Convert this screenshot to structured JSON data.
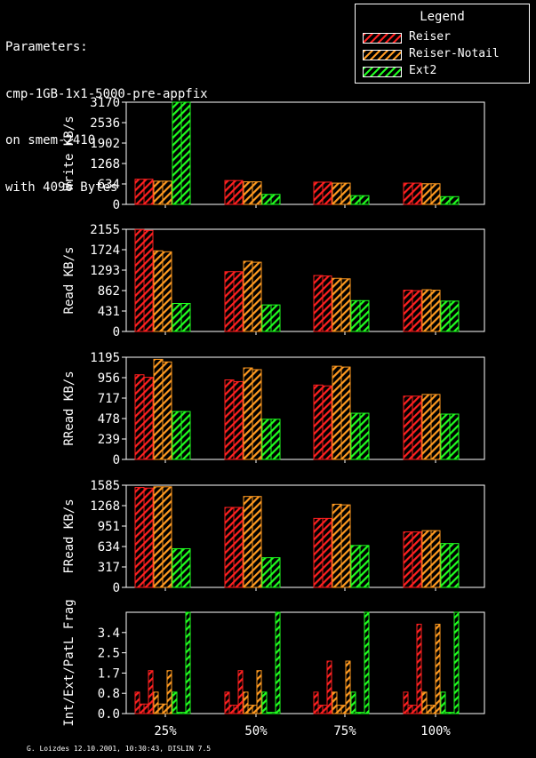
{
  "header": {
    "params_lines": [
      "Parameters:",
      "cmp-1GB-1x1-5000-pre-appfix",
      "on smem-2410",
      "with 4096 Bytes"
    ]
  },
  "legend": {
    "title": "Legend",
    "items": [
      {
        "label": "Reiser",
        "color": "#ff2020"
      },
      {
        "label": "Reiser-Notail",
        "color": "#ff9a20"
      },
      {
        "label": "Ext2",
        "color": "#20ff20"
      }
    ]
  },
  "footer": "G. Loizdes 12.10.2001, 10:30:43, DISLIN 7.5",
  "chart_data": [
    {
      "type": "bar",
      "ylabel": "Write KB/s",
      "categories": [
        "25%",
        "50%",
        "75%",
        "100%"
      ],
      "ylim": [
        0,
        3170
      ],
      "yticks": [
        "0",
        "634",
        "1268",
        "1902",
        "2536",
        "3170"
      ],
      "series": [
        {
          "name": "Reiser",
          "color": "#ff2020",
          "values": [
            [
              780,
              780
            ],
            [
              740,
              740
            ],
            [
              690,
              690
            ],
            [
              660,
              660
            ]
          ]
        },
        {
          "name": "Reiser-Notail",
          "color": "#ff9a20",
          "values": [
            [
              720,
              720
            ],
            [
              700,
              700
            ],
            [
              660,
              660
            ],
            [
              640,
              640
            ]
          ]
        },
        {
          "name": "Ext2",
          "color": "#20ff20",
          "values": [
            [
              3170,
              3170
            ],
            [
              310,
              310
            ],
            [
              270,
              270
            ],
            [
              240,
              240
            ]
          ]
        }
      ]
    },
    {
      "type": "bar",
      "ylabel": "Read KB/s",
      "categories": [
        "25%",
        "50%",
        "75%",
        "100%"
      ],
      "ylim": [
        0,
        2155
      ],
      "yticks": [
        "0",
        "431",
        "862",
        "1293",
        "1724",
        "2155"
      ],
      "series": [
        {
          "name": "Reiser",
          "color": "#ff2020",
          "values": [
            [
              2150,
              2130
            ],
            [
              1260,
              1260
            ],
            [
              1180,
              1170
            ],
            [
              870,
              860
            ]
          ]
        },
        {
          "name": "Reiser-Notail",
          "color": "#ff9a20",
          "values": [
            [
              1700,
              1680
            ],
            [
              1480,
              1460
            ],
            [
              1120,
              1110
            ],
            [
              880,
              870
            ]
          ]
        },
        {
          "name": "Ext2",
          "color": "#20ff20",
          "values": [
            [
              590,
              590
            ],
            [
              560,
              560
            ],
            [
              650,
              650
            ],
            [
              640,
              640
            ]
          ]
        }
      ]
    },
    {
      "type": "bar",
      "ylabel": "RRead KB/s",
      "categories": [
        "25%",
        "50%",
        "75%",
        "100%"
      ],
      "ylim": [
        0,
        1195
      ],
      "yticks": [
        "0",
        "239",
        "478",
        "717",
        "956",
        "1195"
      ],
      "series": [
        {
          "name": "Reiser",
          "color": "#ff2020",
          "values": [
            [
              990,
              960
            ],
            [
              930,
              910
            ],
            [
              870,
              860
            ],
            [
              740,
              740
            ]
          ]
        },
        {
          "name": "Reiser-Notail",
          "color": "#ff9a20",
          "values": [
            [
              1170,
              1140
            ],
            [
              1070,
              1050
            ],
            [
              1090,
              1080
            ],
            [
              760,
              760
            ]
          ]
        },
        {
          "name": "Ext2",
          "color": "#20ff20",
          "values": [
            [
              560,
              560
            ],
            [
              470,
              470
            ],
            [
              540,
              540
            ],
            [
              530,
              530
            ]
          ]
        }
      ]
    },
    {
      "type": "bar",
      "ylabel": "FRead KB/s",
      "categories": [
        "25%",
        "50%",
        "75%",
        "100%"
      ],
      "ylim": [
        0,
        1585
      ],
      "yticks": [
        "0",
        "317",
        "634",
        "951",
        "1268",
        "1585"
      ],
      "series": [
        {
          "name": "Reiser",
          "color": "#ff2020",
          "values": [
            [
              1550,
              1540
            ],
            [
              1240,
              1240
            ],
            [
              1070,
              1070
            ],
            [
              860,
              860
            ]
          ]
        },
        {
          "name": "Reiser-Notail",
          "color": "#ff9a20",
          "values": [
            [
              1560,
              1560
            ],
            [
              1410,
              1410
            ],
            [
              1290,
              1280
            ],
            [
              880,
              880
            ]
          ]
        },
        {
          "name": "Ext2",
          "color": "#20ff20",
          "values": [
            [
              600,
              600
            ],
            [
              460,
              460
            ],
            [
              650,
              650
            ],
            [
              680,
              680
            ]
          ]
        }
      ]
    },
    {
      "type": "bar",
      "ylabel": "Int/Ext/PatL Frag",
      "categories": [
        "25%",
        "50%",
        "75%",
        "100%"
      ],
      "xtick_labels": [
        "25%",
        "50%",
        "75%",
        "100%"
      ],
      "ylim": [
        0,
        4.25
      ],
      "yticks": [
        "0.0",
        "0.8",
        "1.7",
        "2.5",
        "3.4"
      ],
      "ytick_values": [
        0,
        0.85,
        1.7,
        2.55,
        3.4
      ],
      "groups": [
        [
          {
            "color": "#ff2020",
            "values": [
              0.9,
              0.4,
              0.4,
              1.8
            ]
          },
          {
            "color": "#ff9a20",
            "values": [
              0.9,
              0.4,
              0.4,
              1.8
            ]
          },
          {
            "color": "#20ff20",
            "values": [
              0.9,
              0.05,
              0.05,
              4.25
            ]
          }
        ],
        [
          {
            "color": "#ff2020",
            "values": [
              0.9,
              0.35,
              0.35,
              1.8
            ]
          },
          {
            "color": "#ff9a20",
            "values": [
              0.9,
              0.35,
              0.35,
              1.8
            ]
          },
          {
            "color": "#20ff20",
            "values": [
              0.9,
              0.05,
              0.05,
              4.25
            ]
          }
        ],
        [
          {
            "color": "#ff2020",
            "values": [
              0.9,
              0.35,
              0.35,
              2.2
            ]
          },
          {
            "color": "#ff9a20",
            "values": [
              0.9,
              0.35,
              0.35,
              2.2
            ]
          },
          {
            "color": "#20ff20",
            "values": [
              0.9,
              0.05,
              0.05,
              4.25
            ]
          }
        ],
        [
          {
            "color": "#ff2020",
            "values": [
              0.9,
              0.35,
              0.35,
              3.75
            ]
          },
          {
            "color": "#ff9a20",
            "values": [
              0.9,
              0.35,
              0.35,
              3.75
            ]
          },
          {
            "color": "#20ff20",
            "values": [
              0.9,
              0.05,
              0.05,
              4.25
            ]
          }
        ]
      ]
    }
  ]
}
